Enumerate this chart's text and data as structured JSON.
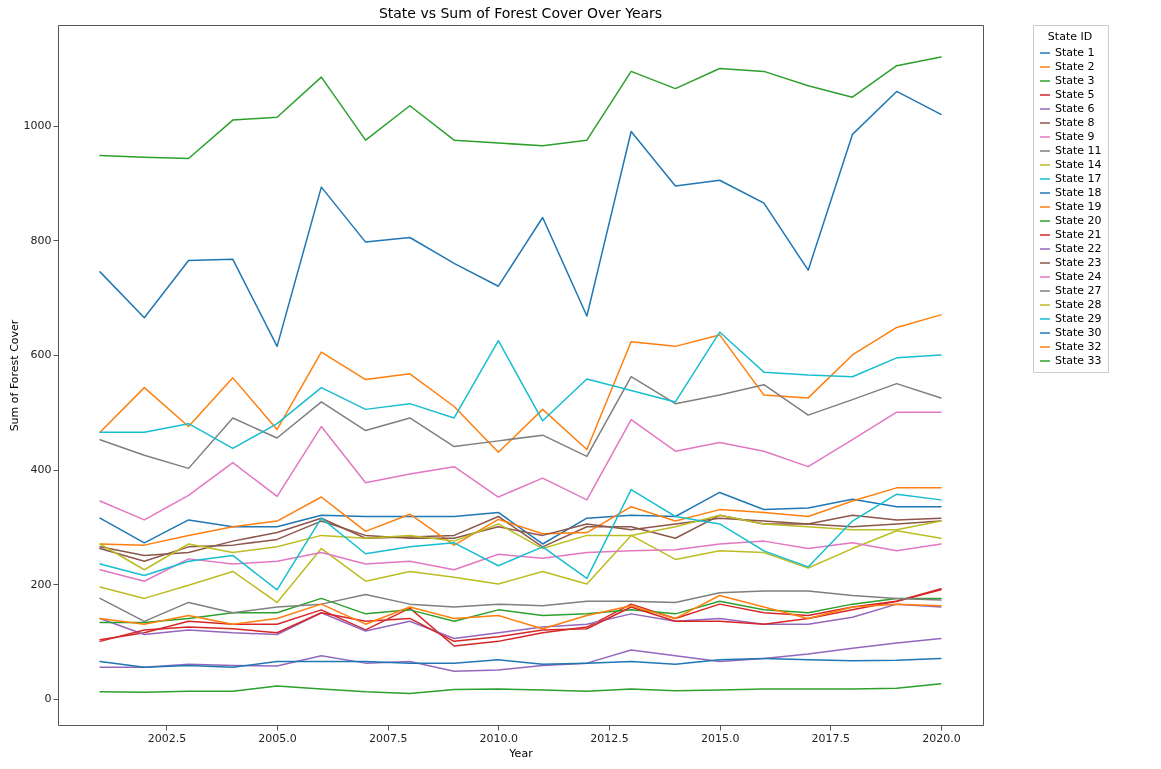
{
  "chart_data": {
    "type": "line",
    "title": "State vs Sum of Forest Cover Over Years",
    "xlabel": "Year",
    "ylabel": "Sum of Forest Cover",
    "legend_title": "State ID",
    "legend": "right",
    "line_style": "solid",
    "x": [
      2001,
      2002,
      2003,
      2004,
      2005,
      2006,
      2007,
      2008,
      2009,
      2010,
      2011,
      2012,
      2013,
      2014,
      2015,
      2016,
      2017,
      2018,
      2019,
      2020
    ],
    "xlim": [
      2000.05,
      2020.95
    ],
    "xticks": [
      {
        "value": 2002.5,
        "label": "2002.5"
      },
      {
        "value": 2005,
        "label": "2005.0"
      },
      {
        "value": 2007.5,
        "label": "2007.5"
      },
      {
        "value": 2010,
        "label": "2010.0"
      },
      {
        "value": 2012.5,
        "label": "2012.5"
      },
      {
        "value": 2015,
        "label": "2015.0"
      },
      {
        "value": 2017.5,
        "label": "2017.5"
      },
      {
        "value": 2020,
        "label": "2020.0"
      }
    ],
    "ylim": [
      -46,
      1176
    ],
    "yticks": [
      0,
      200,
      400,
      600,
      800,
      1000
    ],
    "series": [
      {
        "name": "State 1",
        "color": "#1f77b4",
        "values": [
          745,
          665,
          765,
          767,
          615,
          893,
          797,
          805,
          760,
          720,
          840,
          668,
          990,
          895,
          905,
          865,
          748,
          985,
          1060,
          1020
        ]
      },
      {
        "name": "State 2",
        "color": "#ff7f0e",
        "values": [
          465,
          543,
          475,
          560,
          470,
          605,
          557,
          567,
          510,
          430,
          505,
          435,
          623,
          615,
          635,
          530,
          525,
          600,
          648,
          670
        ]
      },
      {
        "name": "State 3",
        "color": "#2ca02c",
        "values": [
          948,
          945,
          943,
          1010,
          1015,
          1085,
          975,
          1035,
          975,
          970,
          965,
          975,
          1095,
          1065,
          1100,
          1095,
          1070,
          1050,
          1105,
          1120
        ]
      },
      {
        "name": "State 5",
        "color": "#d62728",
        "values": [
          103,
          115,
          135,
          130,
          130,
          155,
          120,
          158,
          92,
          100,
          115,
          125,
          165,
          140,
          165,
          150,
          145,
          160,
          170,
          192
        ]
      },
      {
        "name": "State 6",
        "color": "#9467bd",
        "values": [
          140,
          112,
          120,
          115,
          112,
          150,
          118,
          135,
          105,
          115,
          125,
          130,
          148,
          135,
          140,
          130,
          130,
          142,
          165,
          160
        ]
      },
      {
        "name": "State 8",
        "color": "#8c564b",
        "values": [
          265,
          250,
          255,
          275,
          290,
          315,
          280,
          282,
          285,
          318,
          265,
          300,
          300,
          280,
          320,
          305,
          305,
          320,
          312,
          315
        ]
      },
      {
        "name": "State 9",
        "color": "#e377c2",
        "values": [
          345,
          312,
          355,
          412,
          353,
          475,
          377,
          392,
          405,
          352,
          385,
          347,
          487,
          432,
          447,
          432,
          405,
          452,
          500,
          500
        ]
      },
      {
        "name": "State 11",
        "color": "#7f7f7f",
        "values": [
          452,
          425,
          402,
          490,
          455,
          518,
          468,
          490,
          440,
          450,
          460,
          423,
          562,
          515,
          530,
          548,
          495,
          522,
          550,
          525
        ]
      },
      {
        "name": "State 14",
        "color": "#bcbd22",
        "values": [
          195,
          175,
          198,
          222,
          168,
          262,
          205,
          222,
          212,
          200,
          222,
          200,
          285,
          243,
          258,
          255,
          228,
          262,
          293,
          280
        ]
      },
      {
        "name": "State 17",
        "color": "#17becf",
        "values": [
          465,
          465,
          480,
          437,
          480,
          543,
          505,
          515,
          490,
          625,
          485,
          558,
          538,
          518,
          640,
          570,
          565,
          562,
          595,
          600
        ]
      },
      {
        "name": "State 18",
        "color": "#1f77b4",
        "values": [
          315,
          272,
          312,
          300,
          300,
          320,
          318,
          318,
          318,
          325,
          270,
          315,
          320,
          318,
          360,
          330,
          333,
          348,
          335,
          335
        ]
      },
      {
        "name": "State 19",
        "color": "#ff7f0e",
        "values": [
          270,
          268,
          285,
          300,
          310,
          352,
          292,
          322,
          268,
          313,
          288,
          290,
          335,
          310,
          330,
          325,
          318,
          345,
          368,
          368
        ]
      },
      {
        "name": "State 20",
        "color": "#2ca02c",
        "values": [
          133,
          133,
          140,
          150,
          150,
          175,
          148,
          155,
          135,
          155,
          145,
          148,
          155,
          148,
          170,
          155,
          150,
          165,
          175,
          175
        ]
      },
      {
        "name": "State 21",
        "color": "#d62728",
        "values": [
          100,
          120,
          125,
          122,
          115,
          150,
          135,
          140,
          100,
          108,
          120,
          122,
          160,
          135,
          135,
          130,
          140,
          155,
          170,
          190
        ]
      },
      {
        "name": "State 22",
        "color": "#9467bd",
        "values": [
          55,
          55,
          60,
          58,
          57,
          75,
          62,
          65,
          48,
          50,
          58,
          62,
          85,
          75,
          65,
          70,
          78,
          88,
          97,
          105
        ]
      },
      {
        "name": "State 23",
        "color": "#8c564b",
        "values": [
          262,
          240,
          265,
          268,
          278,
          310,
          285,
          280,
          280,
          300,
          285,
          305,
          295,
          305,
          315,
          310,
          305,
          300,
          305,
          310
        ]
      },
      {
        "name": "State 24",
        "color": "#e377c2",
        "values": [
          225,
          205,
          244,
          235,
          240,
          255,
          235,
          240,
          225,
          252,
          245,
          255,
          258,
          260,
          270,
          275,
          262,
          272,
          258,
          270
        ]
      },
      {
        "name": "State 27",
        "color": "#7f7f7f",
        "values": [
          175,
          135,
          168,
          150,
          160,
          165,
          182,
          165,
          160,
          165,
          162,
          170,
          170,
          168,
          185,
          188,
          188,
          180,
          175,
          172
        ]
      },
      {
        "name": "State 28",
        "color": "#bcbd22",
        "values": [
          270,
          225,
          270,
          255,
          265,
          285,
          280,
          285,
          275,
          305,
          262,
          285,
          285,
          300,
          320,
          305,
          300,
          295,
          295,
          310
        ]
      },
      {
        "name": "State 29",
        "color": "#17becf",
        "values": [
          235,
          215,
          240,
          250,
          190,
          315,
          253,
          265,
          272,
          232,
          265,
          210,
          365,
          318,
          305,
          258,
          230,
          310,
          357,
          347
        ]
      },
      {
        "name": "State 30",
        "color": "#1f77b4",
        "values": [
          65,
          55,
          58,
          55,
          65,
          65,
          65,
          62,
          62,
          68,
          60,
          62,
          65,
          60,
          68,
          70,
          68,
          66,
          67,
          70
        ]
      },
      {
        "name": "State 32",
        "color": "#ff7f0e",
        "values": [
          140,
          130,
          145,
          130,
          140,
          165,
          130,
          160,
          140,
          145,
          122,
          145,
          162,
          140,
          180,
          160,
          140,
          160,
          165,
          162
        ]
      },
      {
        "name": "State 33",
        "color": "#2ca02c",
        "values": [
          12,
          11,
          13,
          13,
          22,
          17,
          12,
          9,
          16,
          17,
          15,
          13,
          17,
          14,
          15,
          17,
          17,
          17,
          18,
          26
        ]
      }
    ]
  }
}
